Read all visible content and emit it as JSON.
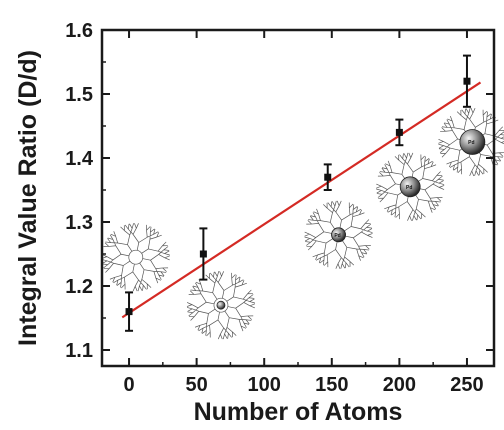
{
  "chart_data": {
    "type": "scatter",
    "xlabel": "Number of Atoms",
    "ylabel": "Integral Value Ratio (D/d)",
    "xlim": [
      -20,
      270
    ],
    "ylim": [
      1.075,
      1.6
    ],
    "xticks": [
      "0",
      "50",
      "100",
      "150",
      "200",
      "250"
    ],
    "yticks": [
      "1.1",
      "1.2",
      "1.3",
      "1.4",
      "1.5",
      "1.6"
    ],
    "grid": false,
    "series": [
      {
        "marker": "square",
        "color": "#111111",
        "points": [
          {
            "x": 0,
            "y": 1.16,
            "err": 0.03
          },
          {
            "x": 55,
            "y": 1.25,
            "err": 0.04
          },
          {
            "x": 147,
            "y": 1.37,
            "err": 0.02
          },
          {
            "x": 200,
            "y": 1.44,
            "err": 0.02
          },
          {
            "x": 250,
            "y": 1.52,
            "err": 0.04
          }
        ]
      }
    ],
    "fit_line": {
      "color": "#d42a24",
      "x": [
        -5,
        260
      ],
      "y": [
        1.151,
        1.518
      ]
    },
    "insets": [
      {
        "icon": "dendrimer-icon",
        "x": 5,
        "y": 1.245,
        "particle": "none",
        "label": ""
      },
      {
        "icon": "dendrimer-icon",
        "x": 68,
        "y": 1.17,
        "particle": "small",
        "label": ""
      },
      {
        "icon": "dendrimer-icon",
        "x": 155,
        "y": 1.28,
        "particle": "medium",
        "label": "Pd"
      },
      {
        "icon": "dendrimer-icon",
        "x": 208,
        "y": 1.355,
        "particle": "large",
        "label": "Pd"
      },
      {
        "icon": "dendrimer-icon",
        "x": 254,
        "y": 1.425,
        "particle": "xlarge",
        "label": "Pd"
      }
    ]
  }
}
